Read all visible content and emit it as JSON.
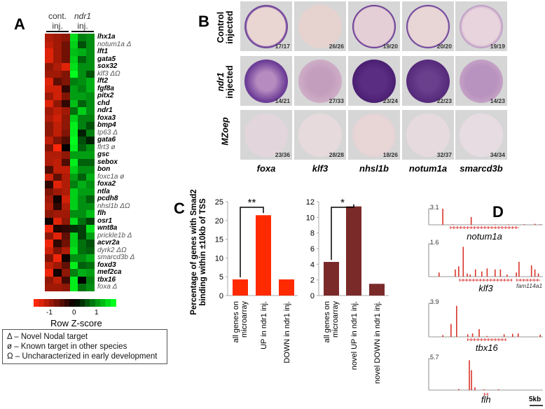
{
  "panel_labels": {
    "a": "A",
    "b": "B",
    "c": "C",
    "d": "D"
  },
  "panel_a": {
    "col_headers": [
      {
        "line1": "cont.",
        "line2": "inj."
      },
      {
        "line1": "ndr1",
        "line2": "inj."
      }
    ],
    "rows": [
      {
        "gene": "lhx1a",
        "known": true,
        "values": [
          -1.1,
          -1.0,
          -0.9,
          1.4,
          0.8,
          0.9
        ]
      },
      {
        "gene": "notum1a Δ",
        "known": false,
        "values": [
          -1.2,
          -1.0,
          -0.7,
          1.3,
          0.5,
          0.9
        ]
      },
      {
        "gene": "lft1",
        "known": true,
        "values": [
          -1.4,
          -1.0,
          -0.7,
          1.2,
          1.1,
          0.9
        ]
      },
      {
        "gene": "gata5",
        "known": true,
        "values": [
          -1.4,
          -1.0,
          -0.7,
          1.3,
          0.6,
          0.9
        ]
      },
      {
        "gene": "sox32",
        "known": true,
        "values": [
          -0.9,
          -1.1,
          -1.4,
          1.4,
          0.9,
          0.9
        ]
      },
      {
        "gene": "klf3 ΔΩ",
        "known": false,
        "values": [
          -1.0,
          -1.0,
          -0.8,
          1.6,
          0.9,
          0.5
        ]
      },
      {
        "gene": "lft2",
        "known": true,
        "values": [
          -1.4,
          -0.6,
          -0.8,
          0.8,
          0.9,
          1.1
        ]
      },
      {
        "gene": "fgf8a",
        "known": true,
        "values": [
          -1.3,
          -1.3,
          -0.3,
          1.0,
          0.8,
          1.1
        ]
      },
      {
        "gene": "pitx2",
        "known": true,
        "values": [
          -1.0,
          -1.3,
          -0.8,
          1.0,
          1.0,
          0.9
        ]
      },
      {
        "gene": "chd",
        "known": true,
        "values": [
          -1.4,
          -0.9,
          -0.3,
          1.2,
          0.6,
          0.9
        ]
      },
      {
        "gene": "ndr1",
        "known": true,
        "values": [
          -1.0,
          -1.2,
          -1.0,
          0.7,
          1.3,
          0.9
        ]
      },
      {
        "gene": "foxa3",
        "known": true,
        "values": [
          -1.1,
          -1.3,
          -0.9,
          1.3,
          0.8,
          0.8
        ]
      },
      {
        "gene": "bmp4",
        "known": true,
        "values": [
          -0.9,
          -1.2,
          -0.9,
          1.5,
          0.8,
          0.5
        ]
      },
      {
        "gene": "tp63 Δ",
        "known": false,
        "values": [
          -0.9,
          -1.2,
          -0.8,
          1.5,
          0.2,
          0.8
        ]
      },
      {
        "gene": "gata6",
        "known": true,
        "values": [
          -1.2,
          -0.8,
          -0.5,
          1.6,
          0.5,
          0.2
        ]
      },
      {
        "gene": "flrt3 ø",
        "known": false,
        "values": [
          -0.8,
          -1.6,
          0.0,
          1.5,
          0.6,
          0.9
        ]
      },
      {
        "gene": "gsc",
        "known": true,
        "values": [
          -1.1,
          -1.1,
          -0.9,
          1.0,
          1.0,
          1.0
        ]
      },
      {
        "gene": "sebox",
        "known": true,
        "values": [
          -1.1,
          -1.2,
          -0.5,
          1.5,
          0.6,
          0.6
        ]
      },
      {
        "gene": "bon",
        "known": true,
        "values": [
          -0.5,
          -1.2,
          -1.2,
          1.3,
          0.9,
          0.9
        ]
      },
      {
        "gene": "foxc1a ø",
        "known": false,
        "values": [
          -1.3,
          -0.6,
          -1.1,
          1.0,
          0.6,
          1.1
        ]
      },
      {
        "gene": "foxa2",
        "known": true,
        "values": [
          -0.3,
          -1.4,
          -1.1,
          0.8,
          1.1,
          0.9
        ]
      },
      {
        "gene": "ntla",
        "known": true,
        "values": [
          -0.8,
          -1.0,
          -1.1,
          1.3,
          1.0,
          1.0
        ]
      },
      {
        "gene": "pcdh8",
        "known": true,
        "values": [
          -1.0,
          -0.1,
          -1.3,
          1.3,
          0.9,
          0.6
        ]
      },
      {
        "gene": "nhsl1b ΔΩ",
        "known": false,
        "values": [
          -1.1,
          -0.3,
          -1.1,
          1.3,
          0.9,
          0.9
        ]
      },
      {
        "gene": "flh",
        "known": true,
        "values": [
          -0.9,
          -1.0,
          -1.0,
          0.9,
          0.9,
          1.2
        ]
      },
      {
        "gene": "osr1",
        "known": true,
        "values": [
          -0.1,
          -1.4,
          -0.9,
          1.4,
          0.7,
          0.4
        ]
      },
      {
        "gene": "wnt8a",
        "known": true,
        "values": [
          -1.5,
          -0.2,
          -0.3,
          0.3,
          0.4,
          1.4
        ]
      },
      {
        "gene": "prickle1b Δ",
        "known": false,
        "values": [
          -0.9,
          -1.4,
          -0.6,
          1.3,
          0.4,
          1.0
        ]
      },
      {
        "gene": "acvr2a",
        "known": true,
        "values": [
          -1.5,
          -0.3,
          -0.7,
          1.3,
          0.7,
          0.5
        ]
      },
      {
        "gene": "dyrk2 ΔΩ",
        "known": false,
        "values": [
          -1.3,
          -0.8,
          -1.1,
          1.4,
          0.7,
          0.6
        ]
      },
      {
        "gene": "smarcd3b Δ",
        "known": false,
        "values": [
          -0.8,
          -1.5,
          -0.1,
          0.9,
          0.9,
          1.1
        ]
      },
      {
        "gene": "foxd3",
        "known": true,
        "values": [
          -1.2,
          -1.0,
          -0.6,
          1.5,
          0.6,
          0.7
        ]
      },
      {
        "gene": "mef2ca",
        "known": true,
        "values": [
          -1.5,
          -0.1,
          -0.9,
          0.8,
          1.1,
          1.0
        ]
      },
      {
        "gene": "tbx16",
        "known": true,
        "values": [
          -0.9,
          -1.2,
          -0.4,
          1.5,
          0.0,
          0.8
        ]
      },
      {
        "gene": "foxa Δ",
        "known": false,
        "values": [
          -1.0,
          -1.0,
          -0.9,
          1.5,
          0.7,
          0.9
        ]
      }
    ],
    "colorbar": {
      "ticks": [
        "-1",
        "0",
        "1"
      ],
      "title": "Row Z-score",
      "low": "#ff2a10",
      "mid": "#000000",
      "high": "#00ff22"
    },
    "legend": [
      "Δ – Novel Nodal target",
      "ø – Known target in other species",
      "Ω – Uncharacterized in early development"
    ]
  },
  "panel_b": {
    "row_labels": [
      {
        "line1": "Control",
        "line2": "injected"
      },
      {
        "line1": "ndr1",
        "line2": "injected"
      },
      {
        "line1": "MZoep",
        "line2": ""
      }
    ],
    "genes": [
      "foxa",
      "klf3",
      "nhsl1b",
      "notum1a",
      "smarcd3b"
    ],
    "counts": [
      [
        "17/17",
        "26/26",
        "19/20",
        "20/20",
        "19/19"
      ],
      [
        "14/21",
        "27/33",
        "23/24",
        "22/23",
        "14/23"
      ],
      [
        "23/36",
        "28/28",
        "18/26",
        "32/37",
        "34/34"
      ]
    ]
  },
  "chart_data": [
    {
      "type": "bar",
      "title": "",
      "ylabel": "Percentage of genes with Smad2 binding within ±10kb of TSS",
      "ylabel_lines": [
        "Percentage of genes with Smad2",
        "binding within ±10kb of TSS"
      ],
      "categories": [
        [
          "all genes on",
          "microarray"
        ],
        [
          "UP in ndr1 inj."
        ],
        [
          "DOWN in ndr1 inj."
        ]
      ],
      "values": [
        4.3,
        21.4,
        4.3
      ],
      "ylim": [
        0,
        25
      ],
      "yticks": [
        "0",
        "5",
        "10",
        "15",
        "20",
        "25"
      ],
      "color": "#ff2a00",
      "significance": {
        "from": 0,
        "to": 1,
        "label": "**"
      }
    },
    {
      "type": "bar",
      "title": "",
      "ylabel": "",
      "categories": [
        [
          "all genes on",
          "microarray"
        ],
        [
          "novel UP in ndr1 inj."
        ],
        [
          "novel DOWN in ndr1 inj."
        ]
      ],
      "values": [
        4.3,
        11.4,
        1.5
      ],
      "ylim": [
        0,
        12
      ],
      "yticks": [
        "0",
        "2",
        "4",
        "6",
        "8",
        "10",
        "12"
      ],
      "color": "#7b2a2a",
      "significance": {
        "from": 0,
        "to": 1,
        "label": "*"
      }
    }
  ],
  "panel_d": {
    "range_kb": 43,
    "tracks": [
      {
        "max": "3.1",
        "maxv": 3.1,
        "gene": "notum1a",
        "gene_span": [
          8,
          34
        ],
        "peaks": [
          [
            5.3,
            3.1
          ],
          [
            16,
            1.5
          ],
          [
            9,
            0.1
          ],
          [
            20,
            0.05
          ],
          [
            25,
            0.08
          ],
          [
            30,
            0.1
          ],
          [
            36,
            0.12
          ],
          [
            40,
            0.2
          ],
          [
            42,
            0.1
          ]
        ]
      },
      {
        "max": "1.6",
        "maxv": 1.6,
        "gene": "klf3",
        "gene_span": [
          11.5,
          31.5
        ],
        "extra_gene": "fam114a1",
        "extra_span": [
          33,
          42
        ],
        "peaks": [
          [
            3.9,
            0.2
          ],
          [
            10,
            0.35
          ],
          [
            11.3,
            0.5
          ],
          [
            13,
            1.45
          ],
          [
            14.5,
            0.15
          ],
          [
            15.6,
            0.1
          ],
          [
            17.6,
            0.35
          ],
          [
            20,
            0.25
          ],
          [
            22,
            0.4
          ],
          [
            25,
            0.35
          ],
          [
            27,
            0.35
          ],
          [
            29.5,
            0.1
          ],
          [
            33,
            0.2
          ],
          [
            34,
            0.72
          ],
          [
            38.7,
            0.55
          ],
          [
            40,
            0.35
          ],
          [
            41.3,
            0.15
          ]
        ]
      },
      {
        "max": "3.9",
        "maxv": 3.9,
        "gene": "tbx16",
        "gene_span": [
          14.5,
          29.2
        ],
        "peaks": [
          [
            5.3,
            0.2
          ],
          [
            8.4,
            1.5
          ],
          [
            10.5,
            3.6
          ],
          [
            14.7,
            0.3
          ],
          [
            16.5,
            0.4
          ],
          [
            19,
            0.9
          ],
          [
            22,
            0.1
          ],
          [
            28.4,
            0.3
          ],
          [
            31.6,
            0.35
          ],
          [
            33.7,
            0.4
          ],
          [
            42,
            0.25
          ]
        ]
      },
      {
        "max": "5.7",
        "maxv": 5.7,
        "gene": "flh",
        "gene_span": [
          20.8,
          22.3
        ],
        "peaks": [
          [
            11.3,
            0.2
          ],
          [
            15.3,
            5.4
          ],
          [
            16.1,
            3.6
          ],
          [
            17.4,
            0.5
          ],
          [
            20.8,
            0.15
          ],
          [
            26.3,
            0.15
          ]
        ]
      }
    ],
    "scale_label": "5kb",
    "scale_kb": 5
  }
}
